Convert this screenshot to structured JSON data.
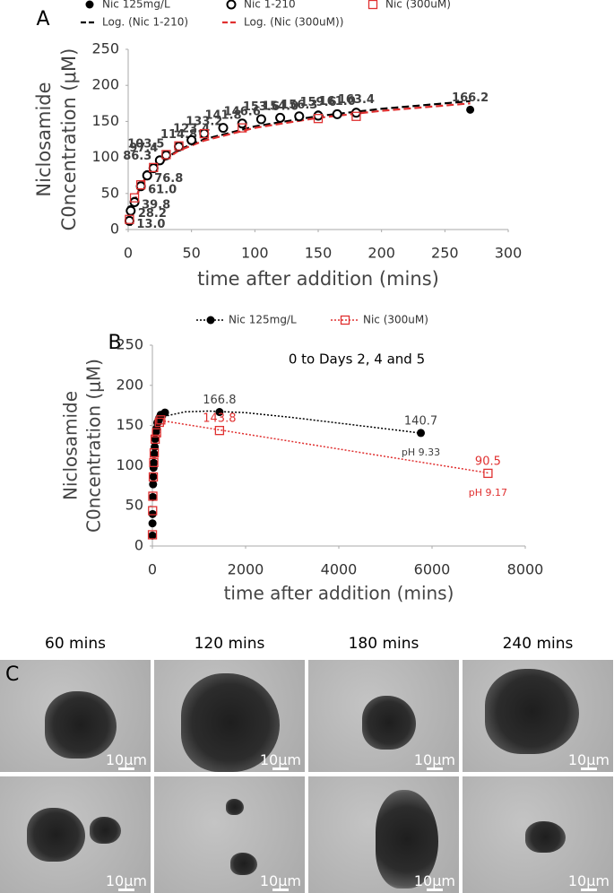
{
  "chart_data": [
    {
      "type": "scatter",
      "panel_label": "A",
      "xlabel": "time after addition (mins)",
      "ylabel": [
        "Niclosamide",
        "C0ncentration (μM)"
      ],
      "xlim": [
        0,
        300
      ],
      "xticks": [
        0,
        50,
        100,
        150,
        200,
        250,
        300
      ],
      "ylim": [
        0,
        250
      ],
      "yticks": [
        0,
        50,
        100,
        150,
        200,
        250
      ],
      "grid": false,
      "series": [
        {
          "name": "Nic 125mg/L",
          "color": "#000000",
          "marker": "filled-circle",
          "x": [
            1,
            2,
            5,
            10,
            15,
            20,
            25,
            30,
            40,
            50,
            60,
            75,
            90,
            105,
            120,
            135,
            150,
            165,
            180,
            270
          ],
          "values": [
            13,
            28.2,
            39.8,
            61,
            76.8,
            86.3,
            97.4,
            103.5,
            114.8,
            123.4,
            133.2,
            141.8,
            146.6,
            153.6,
            154,
            156.3,
            159.6,
            161,
            163.4,
            166.2
          ],
          "value_labels": [
            "13.0",
            "28.2",
            "39.8",
            "61.0",
            "76.8",
            "86.3",
            "97.4",
            "103.5",
            "114.8",
            "123.4",
            "133.2",
            "141.8",
            "146.6",
            "153.6",
            "154.0",
            "156.3",
            "159.6",
            "161.0",
            "163.4",
            "166.2"
          ]
        },
        {
          "name": "Nic 1-210",
          "color": "#000000",
          "marker": "open-circle",
          "x": [
            1,
            2,
            5,
            10,
            15,
            20,
            25,
            30,
            40,
            50,
            60,
            75,
            90,
            105,
            120,
            135,
            150,
            165,
            180
          ],
          "values": [
            12,
            26,
            38,
            60,
            75,
            85,
            96,
            103,
            115,
            124,
            133,
            141,
            147,
            153,
            155,
            157,
            158,
            160,
            162
          ]
        },
        {
          "name": "Nic (300uM)",
          "color": "#e03030",
          "marker": "open-square",
          "x": [
            1,
            5,
            10,
            20,
            30,
            40,
            60,
            90,
            150,
            180
          ],
          "values": [
            14,
            44,
            62,
            86,
            104,
            116,
            133,
            141,
            154,
            157
          ]
        },
        {
          "name": "Log. (Nic 1-210)",
          "color": "#000000",
          "marker": "dashed-line",
          "x": [
            2,
            5,
            10,
            20,
            40,
            60,
            100,
            150,
            200,
            270
          ],
          "values": [
            5.4,
            37.7,
            62,
            86.4,
            110.8,
            125.1,
            143.1,
            157.4,
            167.5,
            178.1
          ]
        },
        {
          "name": "Log. (Nic (300uM))",
          "color": "#e03030",
          "marker": "dashed-line",
          "x": [
            2,
            5,
            10,
            20,
            40,
            60,
            100,
            150,
            200,
            270
          ],
          "values": [
            6.8,
            38.2,
            62,
            85.8,
            109.5,
            123.4,
            141,
            154.9,
            164.7,
            175
          ]
        }
      ]
    },
    {
      "type": "scatter",
      "panel_label": "B",
      "title": "0 to Days 2, 4 and 5",
      "xlabel": "time after addition (mins)",
      "ylabel": [
        "Niclosamide",
        "C0ncentration (μM)"
      ],
      "xlim": [
        0,
        8000
      ],
      "xticks": [
        0,
        2000,
        4000,
        6000,
        8000
      ],
      "ylim": [
        0,
        250
      ],
      "yticks": [
        0,
        50,
        100,
        150,
        200,
        250
      ],
      "grid": false,
      "series": [
        {
          "name": "Nic 125mg/L",
          "color": "#000000",
          "marker": "filled-circle",
          "note": "pH 9.33",
          "x": [
            1,
            2,
            5,
            10,
            15,
            20,
            25,
            30,
            40,
            50,
            60,
            75,
            90,
            105,
            120,
            135,
            150,
            165,
            180,
            270,
            1440,
            5760
          ],
          "values": [
            13,
            28.2,
            39.8,
            61,
            76.8,
            86.3,
            97.4,
            103.5,
            114.8,
            123.4,
            133.2,
            141.8,
            146.6,
            153.6,
            154,
            156.3,
            159.6,
            161,
            163.4,
            166.2,
            166.8,
            140.7
          ],
          "value_labels": [
            null,
            null,
            null,
            null,
            null,
            null,
            null,
            null,
            null,
            null,
            null,
            null,
            null,
            null,
            null,
            null,
            null,
            null,
            null,
            null,
            "166.8",
            "140.7"
          ],
          "trendline": {
            "x": [
              100,
              300,
              700,
              1200,
              2000,
              3000,
              4000,
              5000,
              5760
            ],
            "values": [
              150,
              162,
              167,
              168,
              166,
              160,
              153,
              146,
              140.5
            ]
          }
        },
        {
          "name": "Nic (300uM)",
          "color": "#e03030",
          "marker": "open-square",
          "note": "pH 9.17",
          "x": [
            1,
            5,
            10,
            20,
            30,
            40,
            60,
            90,
            150,
            180,
            1440,
            7200
          ],
          "values": [
            14,
            44,
            62,
            86,
            104,
            116,
            133,
            141,
            154,
            157,
            143.8,
            90.5
          ],
          "value_labels": [
            null,
            null,
            null,
            null,
            null,
            null,
            null,
            null,
            null,
            null,
            "143.8",
            "90.5"
          ],
          "trendline": {
            "x": [
              100,
              7200
            ],
            "values": [
              157,
              91
            ]
          }
        }
      ]
    }
  ],
  "panel_c": {
    "label": "C",
    "columns": [
      "60 mins",
      "120 mins",
      "180 mins",
      "240 mins"
    ],
    "scale_bar": "10μm"
  }
}
